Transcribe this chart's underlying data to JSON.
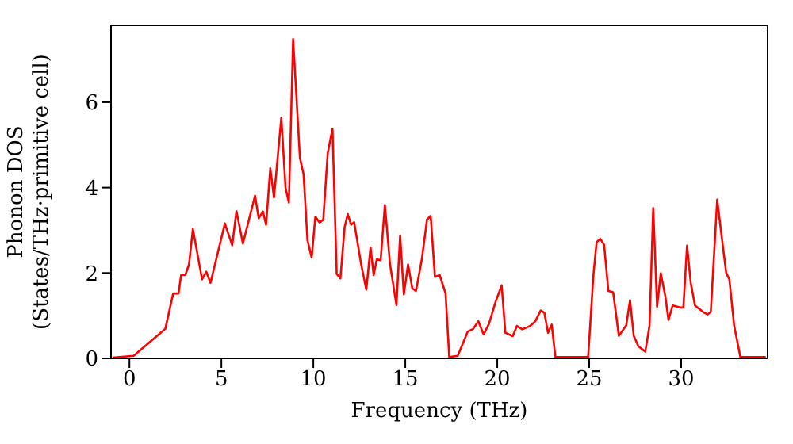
{
  "chart_data": {
    "type": "line",
    "xlabel": "Frequency (THz)",
    "ylabel": "Phonon DOS\n(States/THz·primitive cell)",
    "xlim": [
      -1,
      34.7
    ],
    "ylim": [
      0,
      7.8
    ],
    "xticks": [
      0,
      5,
      10,
      15,
      20,
      25,
      30
    ],
    "yticks": [
      0,
      2,
      4,
      6
    ],
    "marker": "none",
    "line_style": "solid",
    "series": [
      {
        "color": "#ff0000",
        "x": [
          -0.92,
          0.23,
          1.95,
          2.38,
          2.67,
          2.81,
          3.04,
          3.24,
          3.45,
          3.95,
          4.18,
          4.41,
          5.19,
          5.59,
          5.82,
          6.17,
          6.83,
          7.03,
          7.26,
          7.43,
          7.66,
          7.86,
          8.26,
          8.49,
          8.67,
          8.9,
          9.27,
          9.47,
          9.68,
          9.91,
          10.11,
          10.34,
          10.54,
          10.78,
          11.04,
          11.27,
          11.47,
          11.7,
          11.87,
          12.05,
          12.22,
          12.6,
          12.88,
          13.11,
          13.28,
          13.45,
          13.66,
          13.89,
          14.17,
          14.52,
          14.72,
          14.92,
          15.15,
          15.38,
          15.58,
          15.9,
          16.18,
          16.38,
          16.61,
          16.87,
          17.19,
          17.39,
          17.85,
          18.4,
          18.69,
          18.97,
          19.26,
          19.55,
          19.92,
          20.24,
          20.44,
          20.84,
          21.07,
          21.36,
          21.79,
          22.07,
          22.36,
          22.56,
          22.76,
          22.96,
          23.16,
          24.94,
          25.23,
          25.4,
          25.6,
          25.81,
          26.04,
          26.3,
          26.61,
          27.01,
          27.22,
          27.42,
          27.68,
          28.05,
          28.28,
          28.48,
          28.69,
          28.89,
          29.14,
          29.31,
          29.54,
          29.98,
          30.12,
          30.32,
          30.52,
          30.75,
          31.18,
          31.44,
          31.61,
          31.96,
          32.16,
          32.45,
          32.62,
          32.88,
          33.22,
          34.6
        ],
        "values": [
          0.02,
          0.06,
          0.69,
          1.52,
          1.52,
          1.95,
          1.95,
          2.2,
          3.03,
          1.85,
          2.03,
          1.77,
          3.16,
          2.65,
          3.45,
          2.69,
          3.81,
          3.28,
          3.44,
          3.13,
          4.45,
          3.77,
          5.64,
          3.99,
          3.65,
          7.48,
          4.7,
          4.31,
          2.77,
          2.36,
          3.32,
          3.18,
          3.25,
          4.8,
          5.38,
          1.98,
          1.87,
          3.07,
          3.38,
          3.13,
          3.19,
          2.2,
          1.61,
          2.6,
          1.95,
          2.32,
          2.3,
          3.59,
          2.2,
          1.25,
          2.88,
          1.5,
          2.2,
          1.64,
          1.58,
          2.32,
          3.25,
          3.34,
          1.91,
          1.95,
          1.52,
          0.03,
          0.06,
          0.63,
          0.69,
          0.87,
          0.56,
          0.81,
          1.34,
          1.71,
          0.6,
          0.52,
          0.76,
          0.68,
          0.76,
          0.87,
          1.12,
          1.07,
          0.6,
          0.79,
          0.03,
          0.03,
          1.96,
          2.72,
          2.8,
          2.66,
          1.58,
          1.55,
          0.53,
          0.77,
          1.36,
          0.53,
          0.28,
          0.16,
          0.77,
          3.52,
          1.21,
          1.99,
          1.45,
          0.9,
          1.24,
          1.19,
          1.19,
          2.64,
          1.77,
          1.24,
          1.09,
          1.03,
          1.09,
          3.72,
          3.0,
          2.0,
          1.85,
          0.77,
          0.03,
          0.03
        ]
      }
    ]
  }
}
